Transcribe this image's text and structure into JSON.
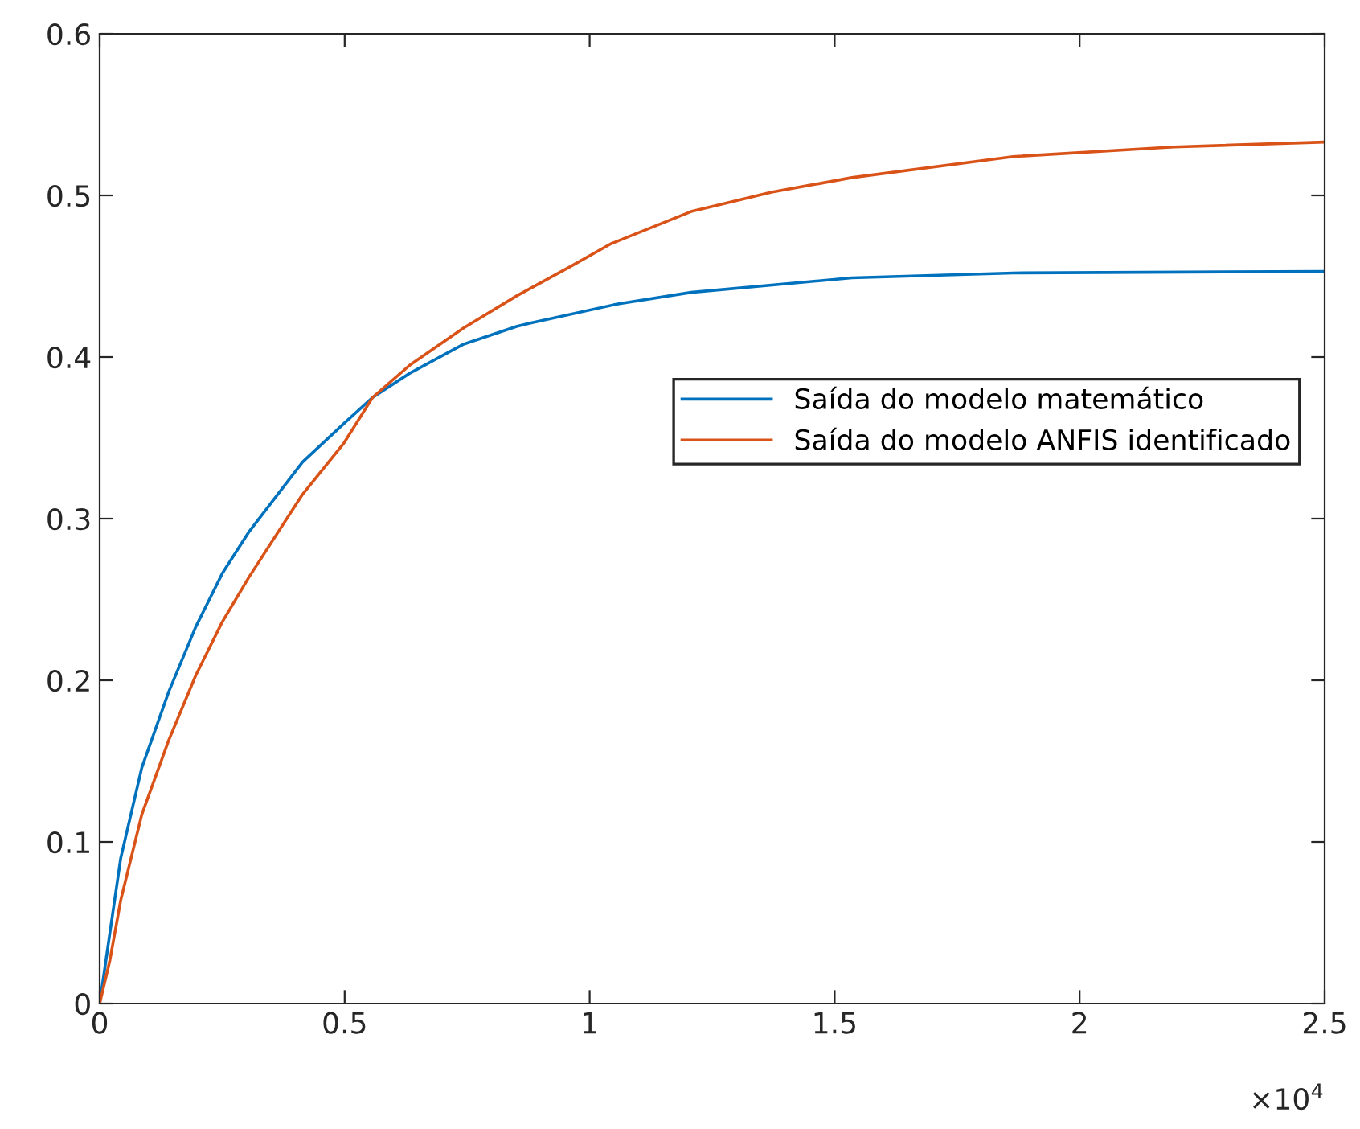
{
  "chart_data": {
    "type": "line",
    "xlim": [
      0,
      2.5
    ],
    "xticks": [
      0,
      0.5,
      1,
      1.5,
      2,
      2.5
    ],
    "ylim": [
      0,
      0.6
    ],
    "yticks": [
      0,
      0.1,
      0.2,
      0.3,
      0.4,
      0.5,
      0.6
    ],
    "grid": false,
    "legend": "right",
    "marker": "none",
    "line_style": "solid",
    "annotations": [
      "×10$^{4}$"
    ],
    "series": [
      {
        "name": "Saída do modelo matemático",
        "color": "#0072bd",
        "x": [
          0,
          0.021,
          0.043,
          0.086,
          0.141,
          0.196,
          0.25,
          0.305,
          0.414,
          0.499,
          0.557,
          0.633,
          0.743,
          0.852,
          0.879,
          1.06,
          1.207,
          1.535,
          1.864,
          2.5
        ],
        "values": [
          0,
          0.044,
          0.09,
          0.146,
          0.193,
          0.233,
          0.266,
          0.292,
          0.335,
          0.359,
          0.375,
          0.39,
          0.408,
          0.419,
          0.421,
          0.433,
          0.44,
          0.449,
          0.452,
          0.453
        ]
      },
      {
        "name": "Saída do modelo ANFIS identificado",
        "color": "#d95319",
        "x": [
          0,
          0.021,
          0.043,
          0.086,
          0.141,
          0.196,
          0.25,
          0.305,
          0.414,
          0.499,
          0.557,
          0.633,
          0.743,
          0.852,
          0.961,
          1.043,
          1.207,
          1.371,
          1.535,
          1.864,
          2.192,
          2.5
        ],
        "values": [
          0,
          0.027,
          0.064,
          0.117,
          0.163,
          0.203,
          0.236,
          0.264,
          0.315,
          0.347,
          0.375,
          0.395,
          0.418,
          0.438,
          0.456,
          0.47,
          0.49,
          0.502,
          0.511,
          0.524,
          0.53,
          0.533
        ]
      }
    ]
  }
}
